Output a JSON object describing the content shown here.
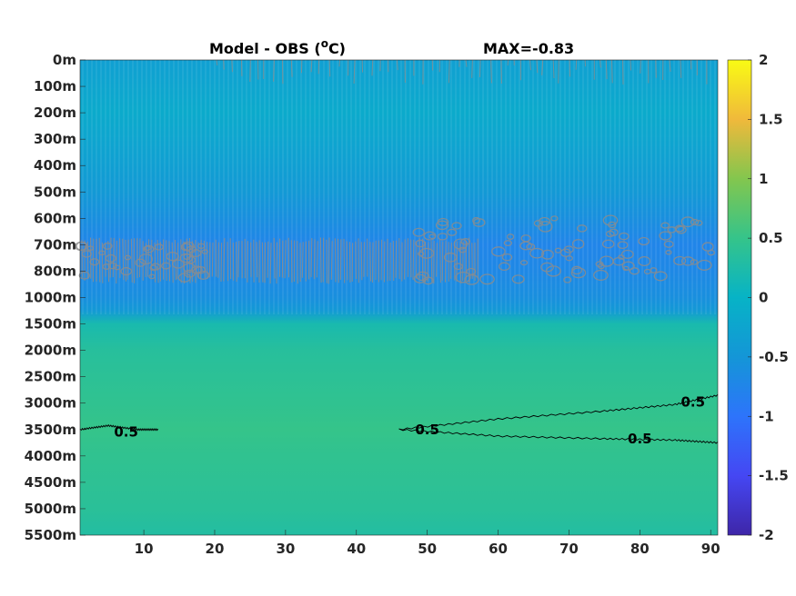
{
  "chart_data": {
    "type": "heatmap",
    "title": "Model - OBS (",
    "title_superscript": "o",
    "title_tail": "C)",
    "annotation": "MAX=-0.83",
    "x_ticks": [
      "10",
      "20",
      "30",
      "40",
      "50",
      "60",
      "70",
      "80",
      "90"
    ],
    "xlim": [
      1,
      91
    ],
    "y_ticks": [
      "0m",
      "100m",
      "200m",
      "300m",
      "400m",
      "500m",
      "600m",
      "700m",
      "800m",
      "1000m",
      "1500m",
      "2000m",
      "2500m",
      "3000m",
      "3500m",
      "4000m",
      "4500m",
      "5000m",
      "5500m"
    ],
    "colorbar": {
      "ticks": [
        "2",
        "1.5",
        "1",
        "0.5",
        "0",
        "-0.5",
        "-1",
        "-1.5",
        "-2"
      ],
      "range": [
        -2,
        2
      ],
      "colormap": "parula"
    },
    "depth_profile": [
      {
        "level": 0,
        "value": -0.35
      },
      {
        "level": 1,
        "value": -0.25
      },
      {
        "level": 2,
        "value": -0.15
      },
      {
        "level": 3,
        "value": -0.25
      },
      {
        "level": 4,
        "value": -0.35
      },
      {
        "level": 5,
        "value": -0.45
      },
      {
        "level": 6,
        "value": -0.6
      },
      {
        "level": 7,
        "value": -0.75
      },
      {
        "level": 8,
        "value": -0.7
      },
      {
        "level": 9,
        "value": -0.6
      },
      {
        "level": 9.5,
        "value": -0.45
      },
      {
        "level": 10,
        "value": 0.2
      },
      {
        "level": 11,
        "value": 0.35
      },
      {
        "level": 12,
        "value": 0.4
      },
      {
        "level": 13,
        "value": 0.45
      },
      {
        "level": 14,
        "value": 0.5
      },
      {
        "level": 15,
        "value": 0.45
      },
      {
        "level": 16,
        "value": 0.42
      },
      {
        "level": 17,
        "value": 0.38
      },
      {
        "level": 18,
        "value": 0.3
      }
    ],
    "contours": [
      {
        "level_label": "0.5",
        "points": [
          [
            1,
            14
          ],
          [
            5,
            13.85
          ],
          [
            9,
            14
          ],
          [
            12,
            14
          ]
        ]
      },
      {
        "level_label": "0.5",
        "points": [
          [
            46,
            14
          ],
          [
            60,
            13.6
          ],
          [
            75,
            13.3
          ],
          [
            85,
            13.05
          ],
          [
            91,
            12.7
          ]
        ]
      },
      {
        "level_label": "0.5",
        "points": [
          [
            46,
            14
          ],
          [
            60,
            14.25
          ],
          [
            75,
            14.35
          ],
          [
            85,
            14.4
          ],
          [
            91,
            14.5
          ]
        ]
      }
    ],
    "contour_labels": [
      {
        "text": "0.5",
        "x": 7.5,
        "level": 14.1
      },
      {
        "text": "0.5",
        "x": 50,
        "level": 14
      },
      {
        "text": "0.5",
        "x": 80,
        "level": 14.35
      },
      {
        "text": "0.5",
        "x": 87.5,
        "level": 12.95
      }
    ]
  }
}
